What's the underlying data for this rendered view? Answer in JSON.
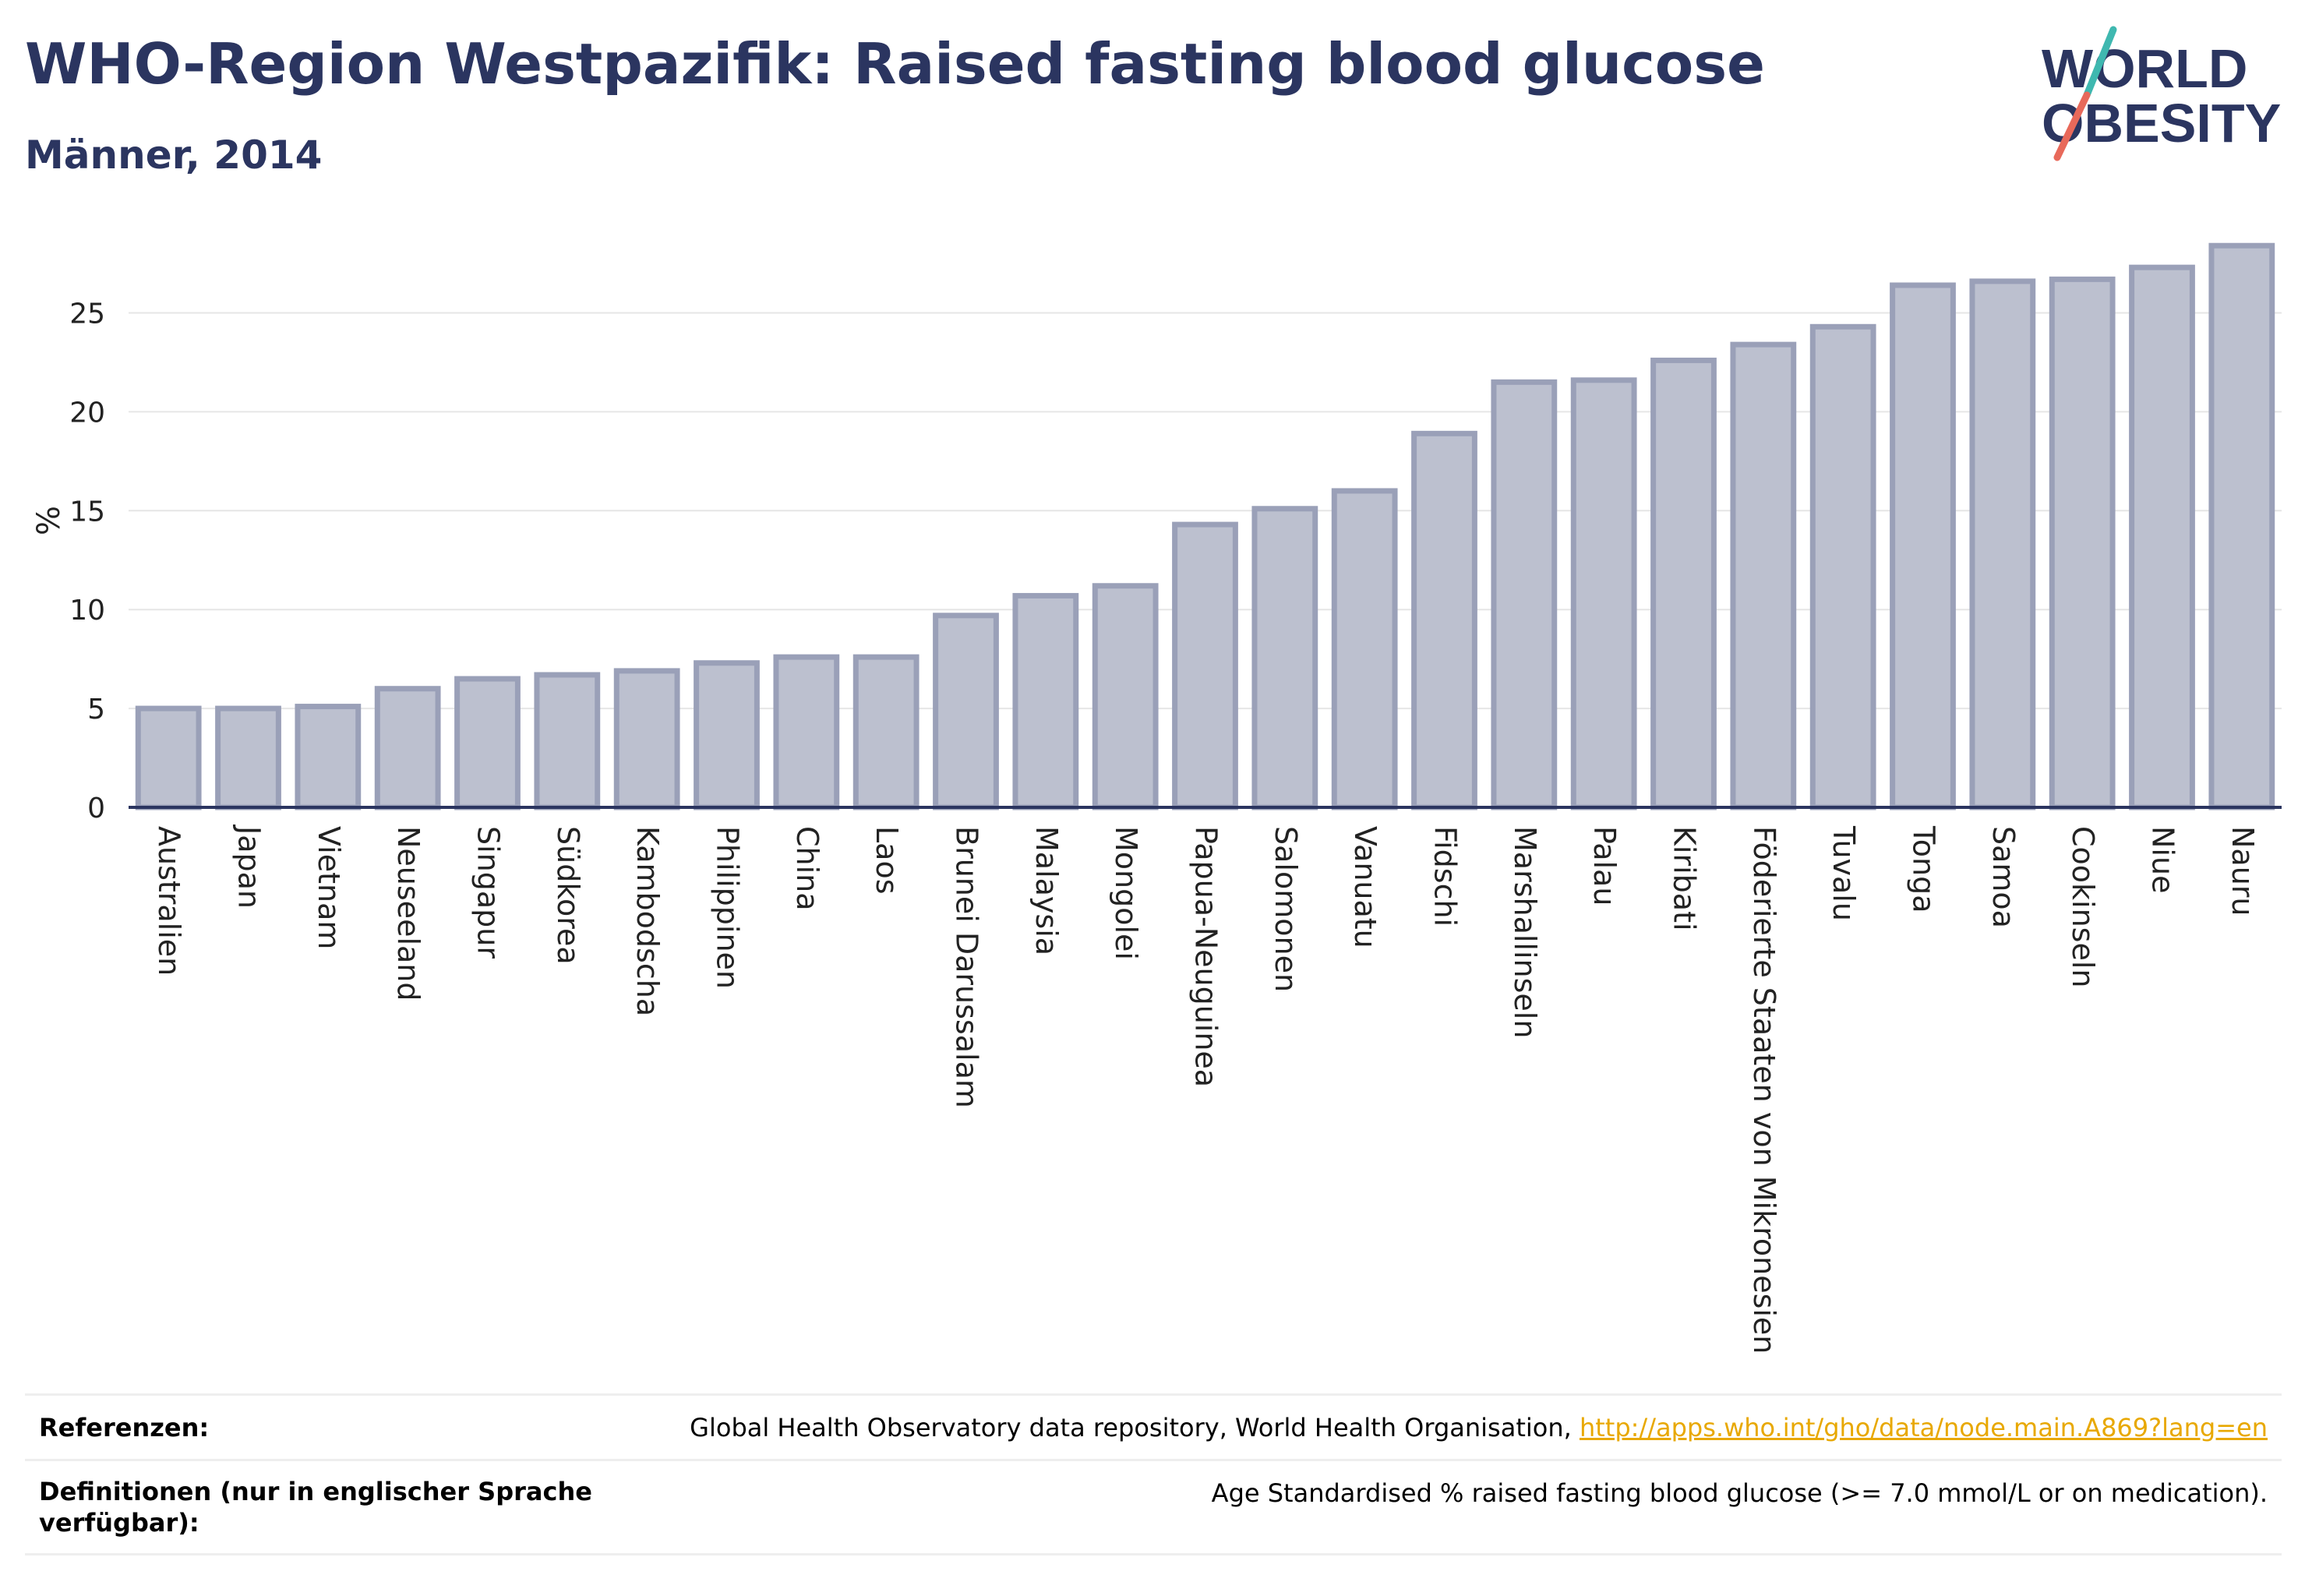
{
  "header": {
    "title": "WHO-Region Westpazifik: Raised fasting blood glucose",
    "subtitle": "Männer, 2014"
  },
  "logo": {
    "line1": "WORLD",
    "line2": "OBESITY",
    "text_color": "#2b3560",
    "accent_teal": "#3fb8b0",
    "accent_coral": "#e8695a"
  },
  "colors": {
    "bar_fill": "#bcc0cf",
    "bar_stroke": "#9aa0b8",
    "grid": "#e6e6e6",
    "axis": "#2b3560",
    "link": "#e8a800"
  },
  "chart_data": {
    "type": "bar",
    "title": "WHO-Region Westpazifik: Raised fasting blood glucose",
    "subtitle": "Männer, 2014",
    "ylabel": "%",
    "ylim": [
      0,
      29
    ],
    "yticks": [
      0,
      5,
      10,
      15,
      20,
      25
    ],
    "grid": true,
    "categories": [
      "Australien",
      "Japan",
      "Vietnam",
      "Neuseeland",
      "Singapur",
      "Südkorea",
      "Kambodscha",
      "Philippinen",
      "China",
      "Laos",
      "Brunei Darussalam",
      "Malaysia",
      "Mongolei",
      "Papua-Neuguinea",
      "Salomonen",
      "Vanuatu",
      "Fidschi",
      "Marshallinseln",
      "Palau",
      "Kiribati",
      "Föderierte Staaten von Mikronesien",
      "Tuvalu",
      "Tonga",
      "Samoa",
      "Cookinseln",
      "Niue",
      "Nauru"
    ],
    "values": [
      5.0,
      5.0,
      5.1,
      6.0,
      6.5,
      6.7,
      6.9,
      7.3,
      7.6,
      7.6,
      9.7,
      10.7,
      11.2,
      14.3,
      15.1,
      16.0,
      18.9,
      21.5,
      21.6,
      22.6,
      23.4,
      24.3,
      26.4,
      26.6,
      26.7,
      27.3,
      28.4
    ]
  },
  "references": {
    "ref_label": "Referenzen:",
    "ref_text": "Global Health Observatory data repository, World Health Organisation,",
    "ref_link": "http://apps.who.int/gho/data/node.main.A869?lang=en",
    "def_label_line1": "Definitionen (nur in englischer Sprache",
    "def_label_line2": "verfügbar):",
    "def_text": "Age Standardised % raised fasting blood glucose (>= 7.0 mmol/L or on medication)."
  }
}
